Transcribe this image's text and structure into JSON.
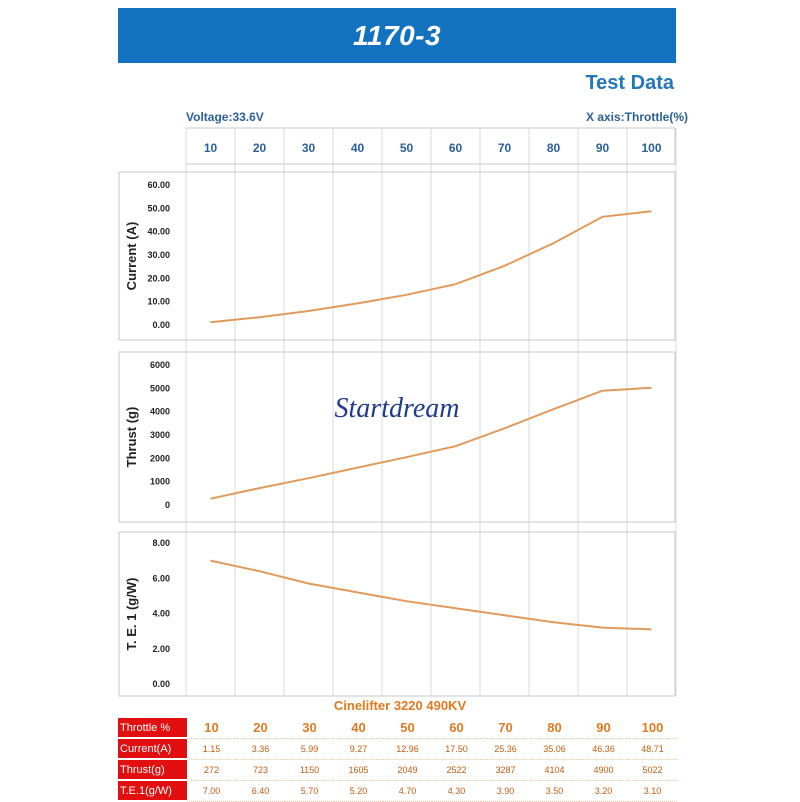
{
  "header": {
    "title": "1170-3",
    "section_title": "Test Data"
  },
  "info": {
    "voltage": "Voltage:33.6V",
    "x_axis": "X axis:Throttle(%)"
  },
  "watermark": "Startdream",
  "model_name": "Cinelifter 3220 490KV",
  "colors": {
    "banner": "#1372c0",
    "line": "#e09b5c",
    "label_red": "#e10f0f",
    "axis_text": "#2b5f99"
  },
  "chart_data": {
    "x_label": "X axis:Throttle(%)",
    "throttle": [
      10,
      20,
      30,
      40,
      50,
      60,
      70,
      80,
      90,
      100
    ],
    "charts": [
      {
        "type": "line",
        "ylabel": "Current (A)",
        "ylim": [
          0,
          60
        ],
        "yticks": [
          "0.00",
          "10.00",
          "20.00",
          "30.00",
          "40.00",
          "50.00",
          "60.00"
        ],
        "values": [
          1.15,
          3.36,
          5.99,
          9.27,
          12.96,
          17.5,
          25.36,
          35.06,
          46.36,
          48.71
        ]
      },
      {
        "type": "line",
        "ylabel": "Thrust (g)",
        "ylim": [
          0,
          6000
        ],
        "yticks": [
          "0",
          "1000",
          "2000",
          "3000",
          "4000",
          "5000",
          "6000"
        ],
        "values": [
          272,
          723,
          1150,
          1605,
          2049,
          2522,
          3287,
          4104,
          4900,
          5022
        ]
      },
      {
        "type": "line",
        "ylabel": "T. E. 1 (g/W)",
        "ylim": [
          0,
          8
        ],
        "yticks": [
          "0.00",
          "2.00",
          "4.00",
          "6.00",
          "8.00"
        ],
        "values": [
          7.0,
          6.4,
          5.7,
          5.2,
          4.7,
          4.3,
          3.9,
          3.5,
          3.2,
          3.1
        ]
      }
    ]
  },
  "table": {
    "rows": [
      {
        "label": "Throttle %",
        "values": [
          "10",
          "20",
          "30",
          "40",
          "50",
          "60",
          "70",
          "80",
          "90",
          "100"
        ]
      },
      {
        "label": "Current(A)",
        "values": [
          "1.15",
          "3.36",
          "5.99",
          "9.27",
          "12.96",
          "17.50",
          "25.36",
          "35.06",
          "46.36",
          "48.71"
        ]
      },
      {
        "label": "Thrust(g)",
        "values": [
          "272",
          "723",
          "1150",
          "1605",
          "2049",
          "2522",
          "3287",
          "4104",
          "4900",
          "5022"
        ]
      },
      {
        "label": "T.E.1(g/W)",
        "values": [
          "7.00",
          "6.40",
          "5.70",
          "5.20",
          "4.70",
          "4.30",
          "3.90",
          "3.50",
          "3.20",
          "3.10"
        ]
      }
    ]
  }
}
